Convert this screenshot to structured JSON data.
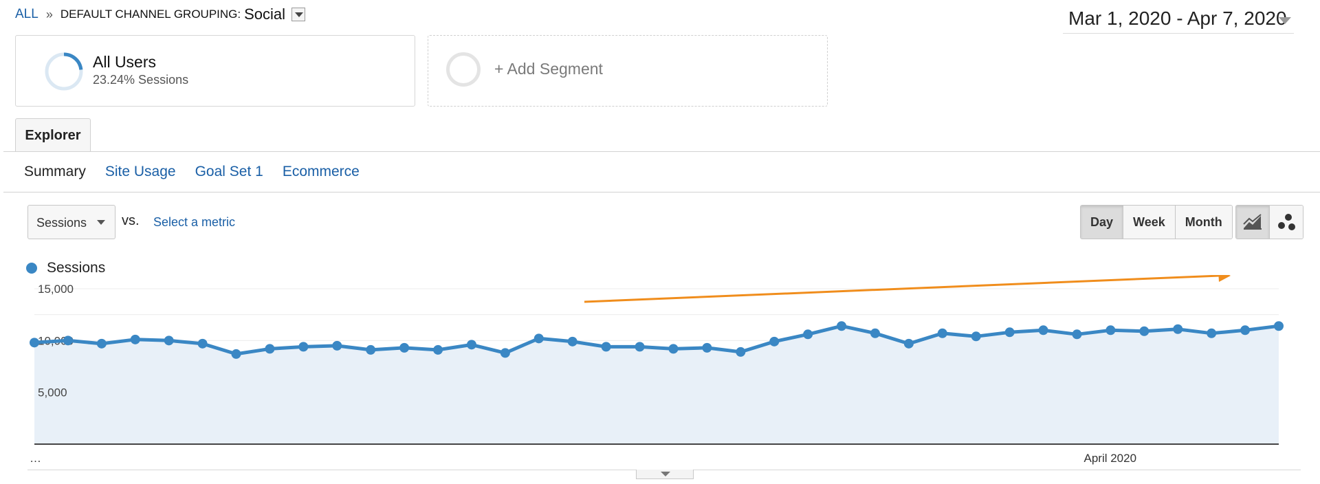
{
  "breadcrumb": {
    "all": "ALL",
    "separator": "»",
    "grouping_label": "DEFAULT CHANNEL GROUPING:",
    "grouping_value": "Social"
  },
  "date_range": {
    "text": "Mar 1, 2020 - Apr 7, 2020"
  },
  "segments": {
    "all_users": {
      "title": "All Users",
      "subtitle": "23.24% Sessions",
      "share": 0.2324
    },
    "add_label": "+ Add Segment"
  },
  "tabs": {
    "explorer": "Explorer"
  },
  "subtabs": [
    "Summary",
    "Site Usage",
    "Goal Set 1",
    "Ecommerce"
  ],
  "metric": {
    "selected": "Sessions",
    "vs": "vs.",
    "select_link": "Select a metric"
  },
  "intervals": [
    "Day",
    "Week",
    "Month"
  ],
  "chart_view_icons": [
    "line-chart-icon",
    "motion-chart-icon"
  ],
  "colors": {
    "series": "#3a87c4",
    "area": "#e8f0f8",
    "annotation_arrow": "#f08d1c",
    "link": "#1a5fa6"
  },
  "chart_data": {
    "type": "line",
    "legend": "Sessions",
    "y_ticks": [
      "15,000",
      "10,000",
      "5,000"
    ],
    "ylim": [
      0,
      15000
    ],
    "x_ticks": [
      "…",
      "April 2020"
    ],
    "series": [
      {
        "name": "Sessions",
        "values": [
          9800,
          10000,
          9700,
          10100,
          10000,
          9700,
          8700,
          9200,
          9400,
          9500,
          9100,
          9300,
          9100,
          9600,
          8800,
          10200,
          9900,
          9400,
          9400,
          9200,
          9300,
          8900,
          9900,
          10600,
          11400,
          10700,
          9700,
          10700,
          10400,
          10800,
          11000,
          10600,
          11000,
          10900,
          11100,
          10700,
          11000,
          11400
        ]
      }
    ]
  }
}
